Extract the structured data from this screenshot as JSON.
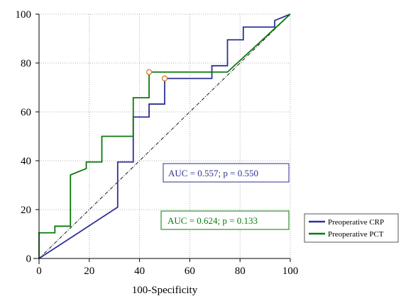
{
  "chart_data": {
    "type": "line",
    "title": "",
    "xlabel": "100-Specificity",
    "ylabel": "",
    "xlim": [
      0,
      100
    ],
    "ylim": [
      0,
      100
    ],
    "x_ticks": [
      0,
      20,
      40,
      60,
      80,
      100
    ],
    "y_ticks": [
      0,
      20,
      40,
      60,
      80,
      100
    ],
    "grid": true,
    "legend_position": "right",
    "reference_line": {
      "from": [
        0,
        0
      ],
      "to": [
        100,
        100
      ],
      "style": "dash-dot",
      "color": "#000000"
    },
    "series": [
      {
        "name": "Preoperative CRP",
        "color": "#2e3192",
        "points": [
          [
            0,
            0
          ],
          [
            31.3,
            21
          ],
          [
            31.3,
            39.5
          ],
          [
            37.5,
            39.5
          ],
          [
            37.5,
            57.9
          ],
          [
            43.8,
            57.9
          ],
          [
            43.8,
            63.2
          ],
          [
            50,
            63.2
          ],
          [
            50,
            73.7
          ],
          [
            68.8,
            73.7
          ],
          [
            68.8,
            78.9
          ],
          [
            75,
            78.9
          ],
          [
            75,
            89.5
          ],
          [
            81.3,
            89.5
          ],
          [
            81.3,
            94.7
          ],
          [
            93.8,
            94.7
          ],
          [
            93.8,
            97.4
          ],
          [
            100,
            100
          ]
        ],
        "optimal_point": [
          50,
          73.7
        ]
      },
      {
        "name": "Preoperative PCT",
        "color": "#0a7a0a",
        "points": [
          [
            0,
            0
          ],
          [
            0,
            10.5
          ],
          [
            6.3,
            10.5
          ],
          [
            6.3,
            13.2
          ],
          [
            12.5,
            13.2
          ],
          [
            12.5,
            34.2
          ],
          [
            18.8,
            36.8
          ],
          [
            18.8,
            39.5
          ],
          [
            25,
            39.5
          ],
          [
            25,
            50
          ],
          [
            37.5,
            50
          ],
          [
            37.5,
            65.8
          ],
          [
            43.8,
            65.8
          ],
          [
            43.8,
            76.3
          ],
          [
            75,
            76.3
          ],
          [
            100,
            100
          ]
        ],
        "optimal_point": [
          43.8,
          76.3
        ]
      }
    ],
    "annotations": [
      {
        "text": "AUC = 0.557; p = 0.550",
        "color": "#2e3192"
      },
      {
        "text": "AUC = 0.624; p = 0.133",
        "color": "#0a7a0a"
      }
    ],
    "optimal_marker_color": "#e0781e"
  }
}
